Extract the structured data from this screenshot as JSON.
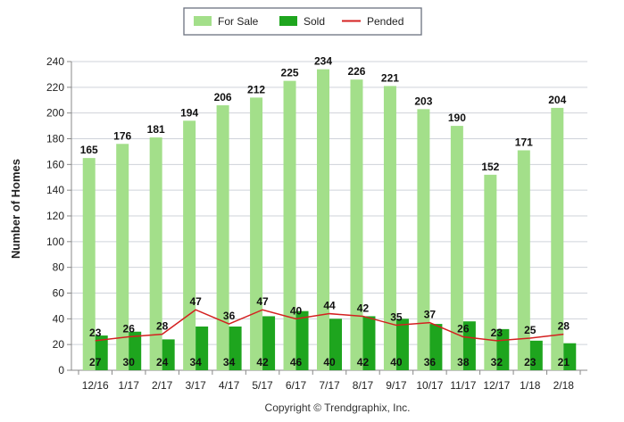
{
  "chart_data": {
    "type": "bar",
    "ylabel": "Number of Homes",
    "xlabel": "",
    "ylim": [
      0,
      240
    ],
    "yticks": [
      0,
      20,
      40,
      60,
      80,
      100,
      120,
      140,
      160,
      180,
      200,
      220,
      240
    ],
    "grid": "horizontal",
    "legend_position": "top-center",
    "categories": [
      "12/16",
      "1/17",
      "2/17",
      "3/17",
      "4/17",
      "5/17",
      "6/17",
      "7/17",
      "8/17",
      "9/17",
      "10/17",
      "11/17",
      "12/17",
      "1/18",
      "2/18"
    ],
    "series": [
      {
        "name": "For Sale",
        "kind": "bar",
        "color": "#a3df8a",
        "values": [
          165,
          176,
          181,
          194,
          206,
          212,
          225,
          234,
          226,
          221,
          203,
          190,
          152,
          171,
          204
        ]
      },
      {
        "name": "Sold",
        "kind": "bar",
        "color": "#1ea51e",
        "values": [
          27,
          30,
          24,
          34,
          34,
          42,
          46,
          40,
          42,
          40,
          36,
          38,
          32,
          23,
          21
        ]
      },
      {
        "name": "Pended",
        "kind": "line",
        "color": "#d42020",
        "values": [
          23,
          26,
          28,
          47,
          36,
          47,
          40,
          44,
          42,
          35,
          37,
          26,
          23,
          25,
          28
        ]
      }
    ],
    "footer": "Copyright © Trendgraphix, Inc."
  }
}
